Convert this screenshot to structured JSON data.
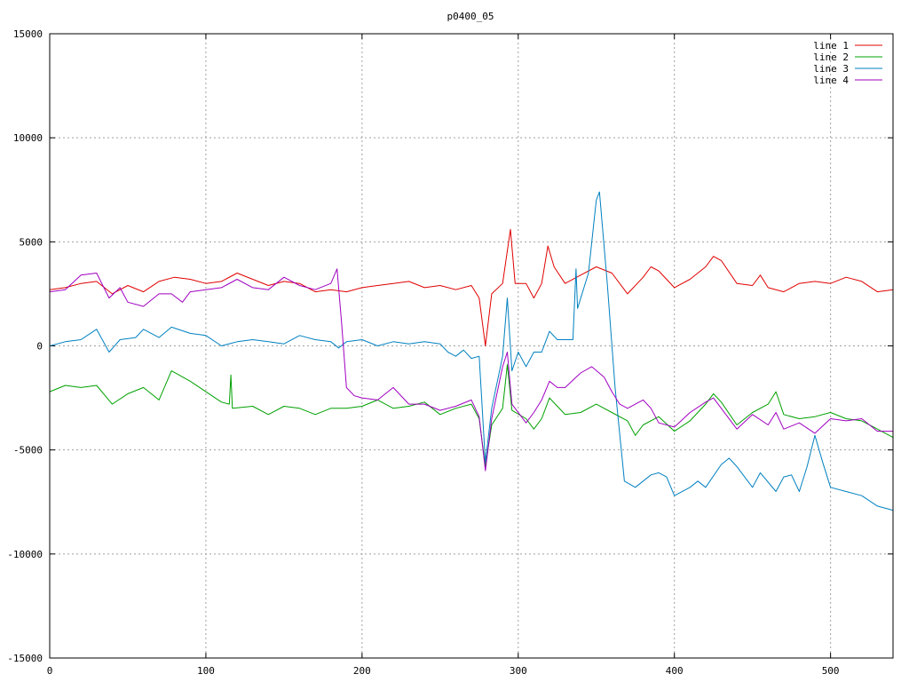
{
  "chart_data": {
    "type": "line",
    "title": "p0400_05",
    "xlim": [
      0,
      540
    ],
    "ylim": [
      -15000,
      15000
    ],
    "x_ticks": [
      0,
      100,
      200,
      300,
      400,
      500
    ],
    "y_ticks": [
      -15000,
      -10000,
      -5000,
      0,
      5000,
      10000,
      15000
    ],
    "grid": true,
    "legend_position": "top-right",
    "series": [
      {
        "name": "line 1",
        "color": "#e00000",
        "points": [
          [
            0,
            2700
          ],
          [
            10,
            2800
          ],
          [
            20,
            3000
          ],
          [
            30,
            3100
          ],
          [
            40,
            2500
          ],
          [
            50,
            2900
          ],
          [
            60,
            2600
          ],
          [
            70,
            3100
          ],
          [
            80,
            3300
          ],
          [
            90,
            3200
          ],
          [
            100,
            3000
          ],
          [
            110,
            3100
          ],
          [
            120,
            3500
          ],
          [
            130,
            3200
          ],
          [
            140,
            2900
          ],
          [
            150,
            3100
          ],
          [
            160,
            3000
          ],
          [
            170,
            2600
          ],
          [
            180,
            2700
          ],
          [
            190,
            2600
          ],
          [
            200,
            2800
          ],
          [
            210,
            2900
          ],
          [
            220,
            3000
          ],
          [
            230,
            3100
          ],
          [
            240,
            2800
          ],
          [
            250,
            2900
          ],
          [
            260,
            2700
          ],
          [
            270,
            2900
          ],
          [
            275,
            2300
          ],
          [
            279,
            0
          ],
          [
            283,
            2500
          ],
          [
            290,
            3000
          ],
          [
            295,
            5600
          ],
          [
            298,
            3000
          ],
          [
            305,
            3000
          ],
          [
            310,
            2300
          ],
          [
            315,
            3000
          ],
          [
            319,
            4800
          ],
          [
            323,
            3800
          ],
          [
            330,
            3000
          ],
          [
            340,
            3400
          ],
          [
            350,
            3800
          ],
          [
            360,
            3500
          ],
          [
            370,
            2500
          ],
          [
            380,
            3300
          ],
          [
            385,
            3800
          ],
          [
            390,
            3600
          ],
          [
            400,
            2800
          ],
          [
            410,
            3200
          ],
          [
            420,
            3800
          ],
          [
            425,
            4300
          ],
          [
            430,
            4100
          ],
          [
            440,
            3000
          ],
          [
            450,
            2900
          ],
          [
            455,
            3400
          ],
          [
            460,
            2800
          ],
          [
            470,
            2600
          ],
          [
            480,
            3000
          ],
          [
            490,
            3100
          ],
          [
            500,
            3000
          ],
          [
            510,
            3300
          ],
          [
            520,
            3100
          ],
          [
            530,
            2600
          ],
          [
            540,
            2700
          ]
        ]
      },
      {
        "name": "line 2",
        "color": "#00a000",
        "points": [
          [
            0,
            -2200
          ],
          [
            10,
            -1900
          ],
          [
            20,
            -2000
          ],
          [
            30,
            -1900
          ],
          [
            40,
            -2800
          ],
          [
            50,
            -2300
          ],
          [
            60,
            -2000
          ],
          [
            70,
            -2600
          ],
          [
            78,
            -1200
          ],
          [
            90,
            -1700
          ],
          [
            100,
            -2200
          ],
          [
            110,
            -2700
          ],
          [
            115,
            -2800
          ],
          [
            116,
            -1400
          ],
          [
            117,
            -3000
          ],
          [
            130,
            -2900
          ],
          [
            140,
            -3300
          ],
          [
            150,
            -2900
          ],
          [
            160,
            -3000
          ],
          [
            170,
            -3300
          ],
          [
            180,
            -3000
          ],
          [
            190,
            -3000
          ],
          [
            200,
            -2900
          ],
          [
            210,
            -2600
          ],
          [
            220,
            -3000
          ],
          [
            230,
            -2900
          ],
          [
            240,
            -2700
          ],
          [
            250,
            -3300
          ],
          [
            260,
            -3000
          ],
          [
            270,
            -2800
          ],
          [
            275,
            -3500
          ],
          [
            279,
            -5800
          ],
          [
            283,
            -3800
          ],
          [
            290,
            -3000
          ],
          [
            293,
            -900
          ],
          [
            296,
            -3100
          ],
          [
            305,
            -3500
          ],
          [
            310,
            -4000
          ],
          [
            315,
            -3500
          ],
          [
            320,
            -2500
          ],
          [
            330,
            -3300
          ],
          [
            340,
            -3200
          ],
          [
            350,
            -2800
          ],
          [
            360,
            -3200
          ],
          [
            370,
            -3600
          ],
          [
            375,
            -4300
          ],
          [
            380,
            -3800
          ],
          [
            390,
            -3400
          ],
          [
            400,
            -4100
          ],
          [
            410,
            -3600
          ],
          [
            420,
            -2800
          ],
          [
            425,
            -2300
          ],
          [
            430,
            -2700
          ],
          [
            440,
            -3800
          ],
          [
            450,
            -3200
          ],
          [
            460,
            -2800
          ],
          [
            465,
            -2200
          ],
          [
            470,
            -3300
          ],
          [
            480,
            -3500
          ],
          [
            490,
            -3400
          ],
          [
            500,
            -3200
          ],
          [
            510,
            -3500
          ],
          [
            520,
            -3600
          ],
          [
            530,
            -4000
          ],
          [
            540,
            -4400
          ]
        ]
      },
      {
        "name": "line 3",
        "color": "#0080c0",
        "points": [
          [
            0,
            0
          ],
          [
            10,
            200
          ],
          [
            20,
            300
          ],
          [
            30,
            800
          ],
          [
            38,
            -300
          ],
          [
            45,
            300
          ],
          [
            55,
            400
          ],
          [
            60,
            800
          ],
          [
            70,
            400
          ],
          [
            78,
            900
          ],
          [
            90,
            600
          ],
          [
            100,
            500
          ],
          [
            110,
            0
          ],
          [
            120,
            200
          ],
          [
            130,
            300
          ],
          [
            140,
            200
          ],
          [
            150,
            100
          ],
          [
            160,
            500
          ],
          [
            170,
            300
          ],
          [
            180,
            200
          ],
          [
            185,
            -100
          ],
          [
            190,
            200
          ],
          [
            200,
            300
          ],
          [
            210,
            0
          ],
          [
            220,
            200
          ],
          [
            230,
            100
          ],
          [
            240,
            200
          ],
          [
            250,
            100
          ],
          [
            255,
            -300
          ],
          [
            260,
            -500
          ],
          [
            265,
            -200
          ],
          [
            270,
            -600
          ],
          [
            275,
            -500
          ],
          [
            279,
            -5600
          ],
          [
            283,
            -3000
          ],
          [
            290,
            -500
          ],
          [
            293,
            2300
          ],
          [
            296,
            -1200
          ],
          [
            300,
            -300
          ],
          [
            305,
            -1000
          ],
          [
            310,
            -300
          ],
          [
            315,
            -300
          ],
          [
            320,
            700
          ],
          [
            325,
            300
          ],
          [
            335,
            300
          ],
          [
            337,
            3700
          ],
          [
            338,
            1800
          ],
          [
            345,
            3500
          ],
          [
            350,
            7000
          ],
          [
            352,
            7400
          ],
          [
            357,
            3000
          ],
          [
            362,
            -2000
          ],
          [
            368,
            -6500
          ],
          [
            375,
            -6800
          ],
          [
            385,
            -6200
          ],
          [
            390,
            -6100
          ],
          [
            395,
            -6300
          ],
          [
            400,
            -7200
          ],
          [
            410,
            -6800
          ],
          [
            415,
            -6500
          ],
          [
            420,
            -6800
          ],
          [
            430,
            -5700
          ],
          [
            435,
            -5400
          ],
          [
            440,
            -5800
          ],
          [
            450,
            -6800
          ],
          [
            455,
            -6100
          ],
          [
            465,
            -7000
          ],
          [
            470,
            -6300
          ],
          [
            475,
            -6200
          ],
          [
            480,
            -7000
          ],
          [
            485,
            -5800
          ],
          [
            490,
            -4300
          ],
          [
            495,
            -5600
          ],
          [
            500,
            -6800
          ],
          [
            510,
            -7000
          ],
          [
            520,
            -7200
          ],
          [
            530,
            -7700
          ],
          [
            540,
            -7900
          ]
        ]
      },
      {
        "name": "line 4",
        "color": "#a000c0",
        "points": [
          [
            0,
            2600
          ],
          [
            10,
            2700
          ],
          [
            20,
            3400
          ],
          [
            30,
            3500
          ],
          [
            38,
            2300
          ],
          [
            45,
            2800
          ],
          [
            50,
            2100
          ],
          [
            60,
            1900
          ],
          [
            70,
            2500
          ],
          [
            78,
            2500
          ],
          [
            85,
            2100
          ],
          [
            90,
            2600
          ],
          [
            100,
            2700
          ],
          [
            110,
            2800
          ],
          [
            120,
            3200
          ],
          [
            130,
            2800
          ],
          [
            140,
            2700
          ],
          [
            150,
            3300
          ],
          [
            160,
            2900
          ],
          [
            170,
            2700
          ],
          [
            180,
            3000
          ],
          [
            184,
            3700
          ],
          [
            187,
            1000
          ],
          [
            190,
            -2000
          ],
          [
            195,
            -2400
          ],
          [
            200,
            -2500
          ],
          [
            210,
            -2600
          ],
          [
            220,
            -2000
          ],
          [
            230,
            -2800
          ],
          [
            240,
            -2800
          ],
          [
            250,
            -3100
          ],
          [
            260,
            -2900
          ],
          [
            270,
            -2600
          ],
          [
            275,
            -3400
          ],
          [
            279,
            -6000
          ],
          [
            283,
            -3500
          ],
          [
            290,
            -1000
          ],
          [
            293,
            -300
          ],
          [
            296,
            -2800
          ],
          [
            305,
            -3700
          ],
          [
            310,
            -3200
          ],
          [
            315,
            -2600
          ],
          [
            320,
            -1700
          ],
          [
            325,
            -2000
          ],
          [
            330,
            -2000
          ],
          [
            340,
            -1300
          ],
          [
            347,
            -1000
          ],
          [
            355,
            -1500
          ],
          [
            360,
            -2200
          ],
          [
            365,
            -2800
          ],
          [
            370,
            -3000
          ],
          [
            380,
            -2600
          ],
          [
            385,
            -3000
          ],
          [
            390,
            -3700
          ],
          [
            400,
            -3900
          ],
          [
            410,
            -3200
          ],
          [
            420,
            -2700
          ],
          [
            425,
            -2500
          ],
          [
            430,
            -3000
          ],
          [
            440,
            -4000
          ],
          [
            450,
            -3300
          ],
          [
            460,
            -3800
          ],
          [
            465,
            -3200
          ],
          [
            470,
            -4000
          ],
          [
            480,
            -3700
          ],
          [
            490,
            -4200
          ],
          [
            500,
            -3500
          ],
          [
            510,
            -3600
          ],
          [
            520,
            -3500
          ],
          [
            530,
            -4100
          ],
          [
            540,
            -4100
          ]
        ]
      }
    ]
  }
}
